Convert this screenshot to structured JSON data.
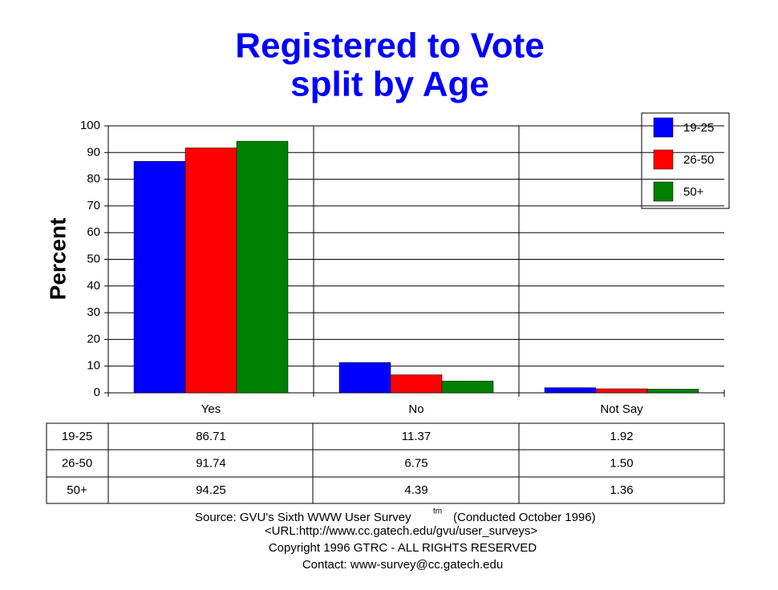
{
  "chart_data": {
    "type": "bar",
    "title": "Registered to Vote",
    "subtitle": "split by Age",
    "y_label": "Percent",
    "categories": [
      "Yes",
      "No",
      "Not Say"
    ],
    "series": [
      {
        "name": "19-25",
        "color": "#0000ff",
        "values": [
          86.71,
          11.37,
          1.92
        ],
        "value_labels": [
          "86.71",
          "11.37",
          "1.92"
        ]
      },
      {
        "name": "26-50",
        "color": "#ff0000",
        "values": [
          91.74,
          6.75,
          1.5
        ],
        "value_labels": [
          "91.74",
          "6.75",
          "1.50"
        ]
      },
      {
        "name": "50+",
        "color": "#008000",
        "values": [
          94.25,
          4.39,
          1.36
        ],
        "value_labels": [
          "94.25",
          "4.39",
          "1.36"
        ]
      }
    ],
    "ylim": [
      0,
      100
    ],
    "yticks": [
      0,
      10,
      20,
      30,
      40,
      50,
      60,
      70,
      80,
      90,
      100
    ],
    "grid": true,
    "legend": "top-right",
    "footer": {
      "source": "Source: GVU's Sixth WWW User Survey",
      "trademark": "tm",
      "conducted": "(Conducted October 1996)",
      "url": "<URL:http://www.cc.gatech.edu/gvu/user_surveys>",
      "copyright": "Copyright 1996 GTRC -  ALL RIGHTS RESERVED",
      "contact": "Contact: www-survey@cc.gatech.edu"
    }
  }
}
